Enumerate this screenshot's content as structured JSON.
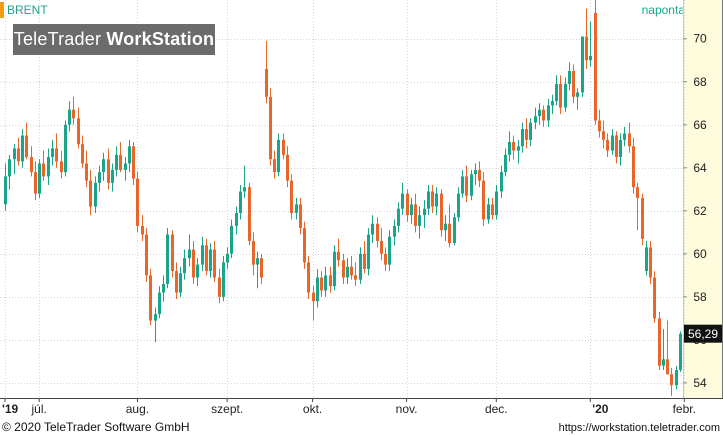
{
  "header": {
    "symbol": "BRENT",
    "period": "naponta",
    "logo_regular": "TeleTrader ",
    "logo_bold": "WorkStation"
  },
  "footer": {
    "copyright": "© 2020 TeleTrader Software GmbH",
    "url": "https://workstation.teletrader.com"
  },
  "colors": {
    "up": "#1aa58a",
    "down": "#e8662a",
    "accent": "#f39c12",
    "grid": "#d4d4d4",
    "axis_panel": "#fffbdd"
  },
  "chart_data": {
    "type": "candlestick",
    "title": "",
    "xlabel": "",
    "ylabel": "",
    "ylim": [
      53.3,
      71.8
    ],
    "y_ticks": [
      54,
      56,
      58,
      60,
      62,
      64,
      66,
      68,
      70
    ],
    "grid": true,
    "last_value": "56,29",
    "x_tick_labels": [
      {
        "label": "'19",
        "index": 0,
        "bold": true
      },
      {
        "label": "júl.",
        "index": 8,
        "bold": false
      },
      {
        "label": "aug.",
        "index": 31,
        "bold": false
      },
      {
        "label": "szept.",
        "index": 52,
        "bold": false
      },
      {
        "label": "okt.",
        "index": 72,
        "bold": false
      },
      {
        "label": "nov.",
        "index": 94,
        "bold": false
      },
      {
        "label": "dec.",
        "index": 115,
        "bold": false
      },
      {
        "label": "'20",
        "index": 137,
        "bold": true
      },
      {
        "label": "febr.",
        "index": 159,
        "bold": false
      }
    ],
    "candles": [
      [
        62.3,
        64.2,
        62.0,
        63.6
      ],
      [
        63.6,
        64.6,
        63.0,
        64.4
      ],
      [
        64.4,
        65.1,
        63.7,
        64.9
      ],
      [
        64.9,
        65.4,
        64.1,
        64.3
      ],
      [
        64.3,
        65.8,
        64.0,
        65.5
      ],
      [
        65.5,
        66.1,
        64.4,
        64.5
      ],
      [
        64.5,
        65.0,
        63.6,
        63.8
      ],
      [
        63.8,
        64.3,
        62.5,
        62.8
      ],
      [
        62.8,
        64.4,
        62.6,
        64.2
      ],
      [
        64.2,
        64.8,
        63.4,
        63.6
      ],
      [
        63.6,
        64.9,
        63.2,
        64.5
      ],
      [
        64.5,
        65.3,
        64.1,
        64.9
      ],
      [
        64.9,
        65.6,
        64.0,
        64.3
      ],
      [
        64.3,
        64.8,
        63.5,
        63.8
      ],
      [
        63.8,
        66.2,
        63.6,
        66.0
      ],
      [
        66.0,
        67.1,
        65.7,
        66.7
      ],
      [
        66.7,
        67.3,
        66.0,
        66.3
      ],
      [
        66.3,
        66.8,
        64.9,
        65.1
      ],
      [
        65.1,
        65.5,
        64.0,
        64.2
      ],
      [
        64.2,
        64.8,
        63.1,
        63.4
      ],
      [
        63.4,
        63.9,
        61.8,
        62.2
      ],
      [
        62.2,
        63.6,
        61.9,
        63.3
      ],
      [
        63.3,
        64.1,
        62.9,
        63.8
      ],
      [
        63.8,
        64.7,
        63.4,
        64.4
      ],
      [
        64.4,
        64.9,
        63.0,
        63.3
      ],
      [
        63.3,
        64.2,
        62.9,
        63.9
      ],
      [
        63.9,
        65.0,
        63.6,
        64.6
      ],
      [
        64.6,
        65.2,
        63.8,
        63.9
      ],
      [
        63.9,
        64.5,
        63.4,
        64.2
      ],
      [
        64.2,
        65.3,
        63.8,
        65.0
      ],
      [
        65.0,
        65.2,
        63.2,
        63.5
      ],
      [
        63.5,
        63.8,
        61.0,
        61.3
      ],
      [
        61.3,
        61.8,
        60.6,
        60.9
      ],
      [
        60.9,
        61.2,
        58.7,
        59.0
      ],
      [
        59.0,
        59.3,
        56.7,
        56.9
      ],
      [
        56.9,
        57.5,
        55.9,
        57.2
      ],
      [
        57.2,
        58.5,
        57.0,
        58.2
      ],
      [
        58.2,
        59.0,
        57.8,
        58.6
      ],
      [
        58.6,
        61.2,
        58.4,
        60.9
      ],
      [
        60.9,
        61.1,
        58.9,
        59.2
      ],
      [
        59.2,
        59.6,
        57.9,
        58.2
      ],
      [
        58.2,
        59.4,
        58.0,
        59.1
      ],
      [
        59.1,
        60.2,
        58.8,
        59.8
      ],
      [
        59.8,
        60.9,
        59.4,
        60.2
      ],
      [
        60.2,
        60.6,
        58.6,
        58.9
      ],
      [
        58.9,
        59.8,
        58.5,
        59.5
      ],
      [
        59.5,
        60.8,
        59.2,
        60.4
      ],
      [
        60.4,
        60.7,
        59.0,
        59.2
      ],
      [
        59.2,
        60.5,
        58.9,
        60.2
      ],
      [
        60.2,
        60.6,
        58.7,
        58.9
      ],
      [
        58.9,
        59.3,
        57.7,
        58.0
      ],
      [
        58.0,
        59.9,
        57.8,
        59.6
      ],
      [
        59.6,
        60.3,
        59.3,
        60.0
      ],
      [
        60.0,
        61.6,
        59.8,
        61.3
      ],
      [
        61.3,
        62.2,
        60.9,
        61.9
      ],
      [
        61.9,
        63.2,
        61.6,
        62.9
      ],
      [
        62.9,
        64.1,
        62.6,
        63.1
      ],
      [
        63.1,
        63.3,
        60.4,
        60.6
      ],
      [
        60.6,
        61.0,
        59.0,
        59.5
      ],
      [
        59.5,
        60.1,
        58.4,
        59.8
      ],
      [
        59.8,
        60.0,
        58.6,
        58.9
      ],
      [
        68.6,
        69.9,
        67.0,
        67.3
      ],
      [
        67.3,
        67.7,
        64.1,
        64.4
      ],
      [
        64.4,
        64.8,
        63.5,
        63.8
      ],
      [
        63.8,
        65.6,
        63.6,
        65.3
      ],
      [
        65.3,
        65.6,
        64.4,
        64.6
      ],
      [
        64.6,
        65.0,
        63.1,
        63.4
      ],
      [
        63.4,
        63.7,
        61.6,
        61.9
      ],
      [
        61.9,
        62.6,
        61.6,
        62.3
      ],
      [
        62.3,
        62.6,
        60.9,
        61.2
      ],
      [
        61.2,
        61.5,
        59.3,
        59.6
      ],
      [
        59.6,
        59.9,
        57.9,
        58.2
      ],
      [
        58.2,
        58.5,
        56.9,
        57.8
      ],
      [
        57.8,
        59.3,
        57.5,
        58.9
      ],
      [
        58.9,
        59.2,
        58.0,
        58.3
      ],
      [
        58.3,
        59.4,
        58.0,
        59.0
      ],
      [
        59.0,
        59.4,
        58.2,
        58.5
      ],
      [
        58.5,
        60.4,
        58.3,
        60.1
      ],
      [
        60.1,
        60.7,
        59.4,
        59.7
      ],
      [
        59.7,
        60.0,
        58.6,
        58.9
      ],
      [
        58.9,
        59.8,
        58.6,
        59.4
      ],
      [
        59.4,
        59.9,
        58.8,
        59.0
      ],
      [
        59.0,
        59.6,
        58.5,
        58.8
      ],
      [
        58.8,
        60.3,
        58.6,
        60.0
      ],
      [
        60.0,
        60.6,
        59.1,
        59.3
      ],
      [
        59.3,
        61.2,
        59.0,
        60.9
      ],
      [
        60.9,
        61.8,
        60.5,
        61.4
      ],
      [
        61.4,
        61.7,
        60.3,
        60.6
      ],
      [
        60.6,
        61.2,
        59.7,
        60.0
      ],
      [
        60.0,
        60.3,
        59.2,
        59.5
      ],
      [
        59.5,
        61.1,
        59.2,
        60.8
      ],
      [
        60.8,
        61.6,
        60.4,
        61.3
      ],
      [
        61.3,
        62.4,
        61.0,
        62.1
      ],
      [
        62.1,
        63.3,
        61.8,
        62.8
      ],
      [
        62.8,
        63.0,
        61.5,
        61.8
      ],
      [
        61.8,
        62.6,
        61.4,
        62.3
      ],
      [
        62.3,
        62.8,
        61.0,
        61.3
      ],
      [
        61.3,
        62.2,
        60.7,
        61.8
      ],
      [
        61.8,
        62.5,
        61.2,
        62.1
      ],
      [
        62.1,
        63.2,
        61.8,
        62.9
      ],
      [
        62.9,
        63.2,
        61.9,
        62.2
      ],
      [
        62.2,
        63.1,
        61.8,
        62.8
      ],
      [
        62.8,
        63.0,
        60.8,
        61.1
      ],
      [
        61.1,
        61.8,
        60.6,
        61.4
      ],
      [
        61.4,
        62.3,
        60.3,
        60.5
      ],
      [
        60.5,
        61.9,
        60.4,
        61.7
      ],
      [
        61.7,
        63.1,
        61.5,
        62.8
      ],
      [
        62.8,
        63.9,
        62.6,
        63.6
      ],
      [
        63.6,
        64.1,
        62.4,
        62.7
      ],
      [
        62.7,
        63.9,
        62.5,
        63.7
      ],
      [
        63.7,
        64.2,
        63.2,
        63.9
      ],
      [
        63.9,
        64.3,
        63.1,
        63.4
      ],
      [
        63.4,
        63.8,
        61.3,
        61.6
      ],
      [
        61.6,
        62.6,
        61.4,
        62.3
      ],
      [
        62.3,
        62.6,
        61.6,
        61.8
      ],
      [
        61.8,
        63.2,
        61.6,
        62.9
      ],
      [
        62.9,
        64.1,
        62.6,
        63.8
      ],
      [
        63.8,
        64.9,
        63.6,
        64.6
      ],
      [
        64.6,
        65.7,
        64.3,
        65.2
      ],
      [
        65.2,
        65.5,
        64.4,
        64.8
      ],
      [
        64.8,
        65.3,
        64.2,
        65.0
      ],
      [
        65.0,
        66.1,
        64.7,
        65.8
      ],
      [
        65.8,
        66.3,
        64.9,
        65.3
      ],
      [
        65.3,
        66.3,
        65.0,
        66.1
      ],
      [
        66.1,
        66.8,
        65.8,
        66.4
      ],
      [
        66.4,
        67.0,
        66.0,
        66.7
      ],
      [
        66.7,
        66.9,
        65.9,
        66.2
      ],
      [
        66.2,
        67.2,
        65.9,
        66.9
      ],
      [
        66.9,
        67.4,
        66.5,
        67.1
      ],
      [
        67.1,
        68.3,
        66.9,
        67.9
      ],
      [
        67.9,
        68.3,
        66.5,
        66.8
      ],
      [
        66.8,
        68.2,
        66.6,
        67.9
      ],
      [
        67.9,
        68.9,
        67.6,
        68.5
      ],
      [
        68.5,
        68.8,
        67.0,
        67.3
      ],
      [
        67.3,
        67.7,
        66.7,
        67.5
      ],
      [
        67.5,
        70.1,
        67.3,
        70.1
      ],
      [
        70.1,
        71.4,
        68.6,
        69.0
      ],
      [
        69.0,
        70.8,
        68.7,
        69.2
      ],
      [
        71.2,
        71.8,
        66.0,
        66.2
      ],
      [
        66.2,
        66.7,
        65.4,
        65.7
      ],
      [
        65.7,
        66.2,
        64.9,
        65.3
      ],
      [
        65.3,
        65.6,
        64.5,
        64.8
      ],
      [
        64.8,
        65.8,
        64.6,
        65.5
      ],
      [
        65.5,
        65.7,
        64.2,
        64.5
      ],
      [
        64.5,
        65.6,
        64.1,
        65.3
      ],
      [
        65.3,
        65.9,
        65.0,
        65.6
      ],
      [
        65.6,
        66.1,
        64.7,
        65.0
      ],
      [
        65.0,
        65.4,
        62.8,
        63.1
      ],
      [
        63.1,
        63.3,
        61.1,
        62.6
      ],
      [
        62.6,
        62.8,
        60.4,
        60.7
      ],
      [
        59.2,
        60.6,
        59.0,
        60.3
      ],
      [
        60.3,
        60.6,
        58.6,
        58.9
      ],
      [
        58.9,
        59.2,
        56.8,
        57.0
      ],
      [
        57.0,
        57.3,
        54.6,
        54.8
      ],
      [
        54.8,
        56.5,
        54.6,
        55.1
      ],
      [
        55.1,
        56.9,
        54.4,
        54.4
      ],
      [
        54.4,
        54.7,
        53.4,
        53.9
      ],
      [
        53.9,
        54.8,
        53.7,
        54.6
      ],
      [
        54.6,
        56.4,
        54.5,
        56.29
      ]
    ]
  }
}
